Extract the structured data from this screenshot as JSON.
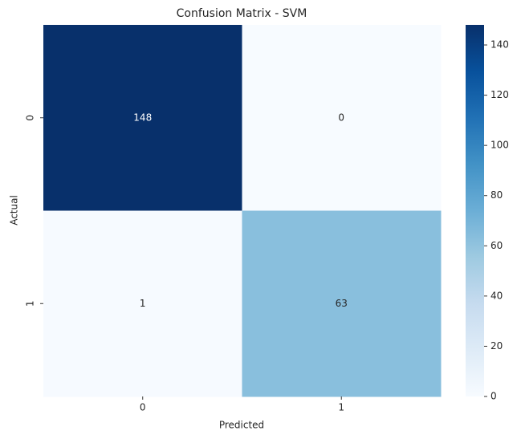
{
  "chart_data": {
    "type": "heatmap",
    "title": "Confusion Matrix - SVM",
    "x_label": "Predicted",
    "y_label": "Actual",
    "x_categories": [
      "0",
      "1"
    ],
    "y_categories": [
      "0",
      "1"
    ],
    "values": [
      [
        148,
        0
      ],
      [
        1,
        63
      ]
    ],
    "colormap": [
      "#f7fbff",
      "#deebf7",
      "#c6dbef",
      "#9ecae1",
      "#6baed6",
      "#4292c6",
      "#2171b5",
      "#08519c",
      "#08306b"
    ],
    "zlim": [
      0,
      148
    ],
    "zticks": [
      0,
      20,
      40,
      60,
      80,
      100,
      120,
      140
    ]
  }
}
